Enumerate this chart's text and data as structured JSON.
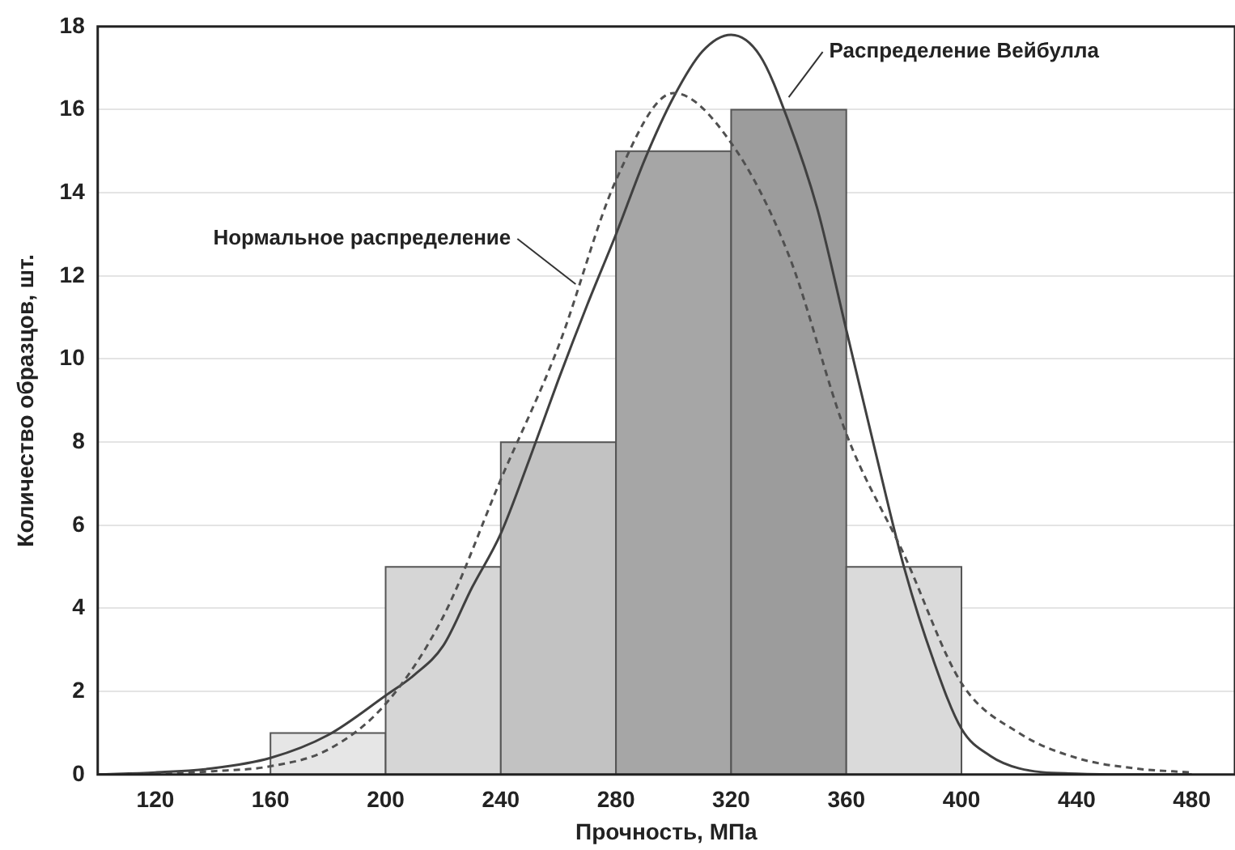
{
  "chart_data": {
    "type": "histogram",
    "xlabel": "Прочность, МПа",
    "ylabel": "Количество образцов, шт.",
    "bins": [
      160,
      200,
      240,
      280,
      320,
      360,
      400
    ],
    "values": [
      1,
      5,
      8,
      15,
      16,
      5
    ],
    "colors": [
      "#e6e6e6",
      "#d6d6d6",
      "#c2c2c2",
      "#a6a6a6",
      "#9c9c9c",
      "#dadada"
    ],
    "series": [
      {
        "type": "line",
        "line_style": "dashed",
        "color": "#505050",
        "x": [
          100,
          120,
          140,
          160,
          180,
          200,
          220,
          240,
          260,
          280,
          300,
          320,
          340,
          360,
          380,
          400,
          420,
          440,
          460,
          480
        ],
        "values": [
          0,
          0.02,
          0.08,
          0.2,
          0.6,
          1.7,
          3.8,
          7.1,
          10.3,
          14.3,
          16.4,
          15.2,
          12.5,
          8.2,
          5.3,
          2.2,
          1.0,
          0.4,
          0.15,
          0.05
        ]
      },
      {
        "type": "line",
        "line_style": "solid",
        "color": "#404040",
        "x": [
          100,
          120,
          140,
          160,
          180,
          200,
          210,
          220,
          230,
          240,
          250,
          260,
          270,
          280,
          290,
          300,
          310,
          320,
          330,
          340,
          350,
          360,
          370,
          380,
          390,
          400,
          410,
          420,
          440,
          460,
          480
        ],
        "values": [
          0,
          0.05,
          0.15,
          0.4,
          0.95,
          1.9,
          2.4,
          3.1,
          4.5,
          5.8,
          7.6,
          9.5,
          11.3,
          13,
          14.8,
          16.3,
          17.4,
          17.8,
          17.3,
          15.7,
          13.6,
          10.7,
          7.8,
          5.0,
          2.8,
          1.1,
          0.45,
          0.15,
          0.02,
          0,
          0
        ]
      }
    ],
    "xlim": [
      100,
      495
    ],
    "xticks": [
      120,
      160,
      200,
      240,
      280,
      320,
      360,
      400,
      440,
      480
    ],
    "ylim": [
      0,
      18
    ],
    "yticks": [
      0,
      2,
      4,
      6,
      8,
      10,
      12,
      14,
      16,
      18
    ],
    "grid": "y",
    "marker": "none",
    "legend": false,
    "annotations": [
      {
        "text": "Нормальное распределение",
        "x": 266,
        "y": 11.8
      },
      {
        "text": "Распределение Вейбулла",
        "x": 340,
        "y": 16.3
      }
    ]
  }
}
